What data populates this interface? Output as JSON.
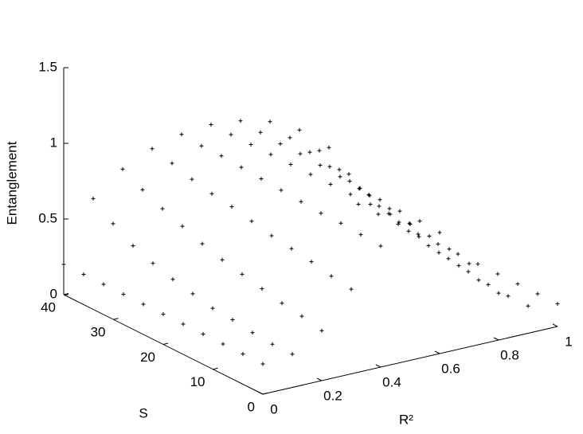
{
  "chart_data": {
    "type": "scatter3d",
    "xlabel": "R²",
    "ylabel": "S",
    "zlabel": "Entanglement",
    "x": [
      0,
      0.1,
      0.2,
      0.3,
      0.4,
      0.5,
      0.6,
      0.7,
      0.8,
      0.9,
      1
    ],
    "y": [
      0,
      4,
      8,
      12,
      16,
      20,
      24,
      28,
      32,
      36,
      40
    ],
    "z": [
      [
        0.2,
        0.22,
        0.33,
        0.56,
        0.8,
        0.9,
        0.8,
        0.55,
        0.31,
        0.18,
        0.15
      ],
      [
        0.2,
        0.22,
        0.36,
        0.58,
        0.81,
        0.9,
        0.81,
        0.58,
        0.33,
        0.18,
        0.15
      ],
      [
        0.2,
        0.23,
        0.38,
        0.61,
        0.82,
        0.9,
        0.81,
        0.6,
        0.36,
        0.19,
        0.15
      ],
      [
        0.2,
        0.25,
        0.41,
        0.63,
        0.82,
        0.9,
        0.82,
        0.62,
        0.38,
        0.21,
        0.15
      ],
      [
        0.2,
        0.26,
        0.44,
        0.65,
        0.83,
        0.9,
        0.83,
        0.65,
        0.42,
        0.23,
        0.15
      ],
      [
        0.2,
        0.29,
        0.47,
        0.68,
        0.84,
        0.9,
        0.84,
        0.67,
        0.45,
        0.25,
        0.15
      ],
      [
        0.2,
        0.32,
        0.51,
        0.71,
        0.85,
        0.9,
        0.85,
        0.7,
        0.49,
        0.28,
        0.15
      ],
      [
        0.2,
        0.36,
        0.56,
        0.73,
        0.86,
        0.9,
        0.86,
        0.73,
        0.54,
        0.33,
        0.15
      ],
      [
        0.2,
        0.41,
        0.61,
        0.76,
        0.87,
        0.9,
        0.86,
        0.76,
        0.6,
        0.39,
        0.15
      ],
      [
        0.2,
        0.49,
        0.67,
        0.8,
        0.87,
        0.9,
        0.87,
        0.79,
        0.66,
        0.46,
        0.15
      ],
      [
        0.2,
        0.59,
        0.74,
        0.83,
        0.88,
        0.9,
        0.88,
        0.83,
        0.73,
        0.57,
        0.15
      ]
    ],
    "color": "#000000",
    "xlim": [
      0,
      1
    ],
    "xticks": [
      0,
      0.2,
      0.4,
      0.6,
      0.8,
      1
    ],
    "ylim": [
      0,
      40
    ],
    "yticks": [
      0,
      10,
      20,
      30,
      40
    ],
    "zlim": [
      0,
      1.5
    ],
    "zticks": [
      0,
      0.5,
      1,
      1.5
    ]
  }
}
